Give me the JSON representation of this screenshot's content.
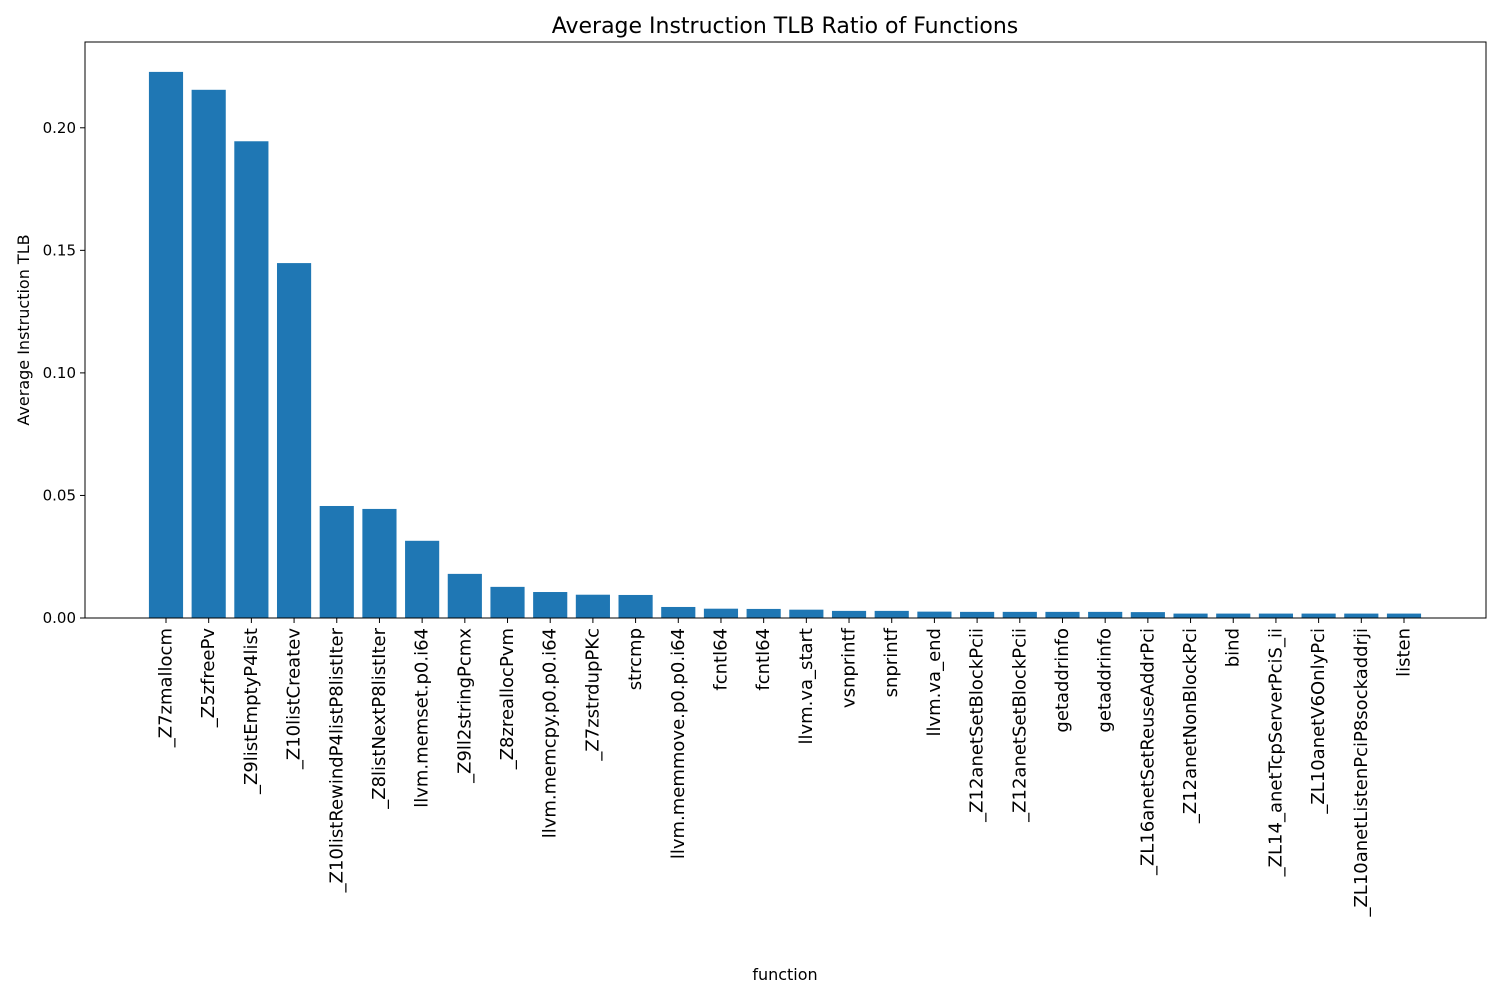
{
  "chart_data": {
    "type": "bar",
    "title": "Average Instruction TLB Ratio of Functions",
    "xlabel": "function",
    "ylabel": "Average Instruction TLB",
    "ylim": [
      0,
      0.235
    ],
    "yticks": [
      "0.00",
      "0.05",
      "0.10",
      "0.15",
      "0.20"
    ],
    "grid": false,
    "color": "#1f77b4",
    "categories": [
      "_Z7zmallocm",
      "_Z5zfreePv",
      "_Z9listEmptyP4list",
      "_Z10listCreatev",
      "_Z10listRewindP4listP8listIter",
      "_Z8listNextP8listIter",
      "llvm.memset.p0.i64",
      "_Z9ll2stringPcmx",
      "_Z8zreallocPvm",
      "llvm.memcpy.p0.p0.i64",
      "_Z7zstrdupPKc",
      "strcmp",
      "llvm.memmove.p0.p0.i64",
      "fcntl64",
      "fcntl64",
      "llvm.va_start",
      "vsnprintf",
      "snprintf",
      "llvm.va_end",
      "_Z12anetSetBlockPcii",
      "_Z12anetSetBlockPcii",
      "getaddrinfo",
      "getaddrinfo",
      "_ZL16anetSetReuseAddrPci",
      "_Z12anetNonBlockPci",
      "bind",
      "_ZL14_anetTcpServerPciS_ii",
      "_ZL10anetV6OnlyPci",
      "_ZL10anetListenPciP8sockaddrji",
      "listen"
    ],
    "values": [
      0.2228,
      0.2155,
      0.1945,
      0.1448,
      0.0457,
      0.0445,
      0.0315,
      0.018,
      0.0127,
      0.0106,
      0.0095,
      0.0094,
      0.0045,
      0.0038,
      0.0037,
      0.0034,
      0.0029,
      0.0029,
      0.0026,
      0.0025,
      0.0025,
      0.0025,
      0.0025,
      0.0024,
      0.0018,
      0.0018,
      0.0018,
      0.0018,
      0.0018,
      0.0018
    ]
  }
}
